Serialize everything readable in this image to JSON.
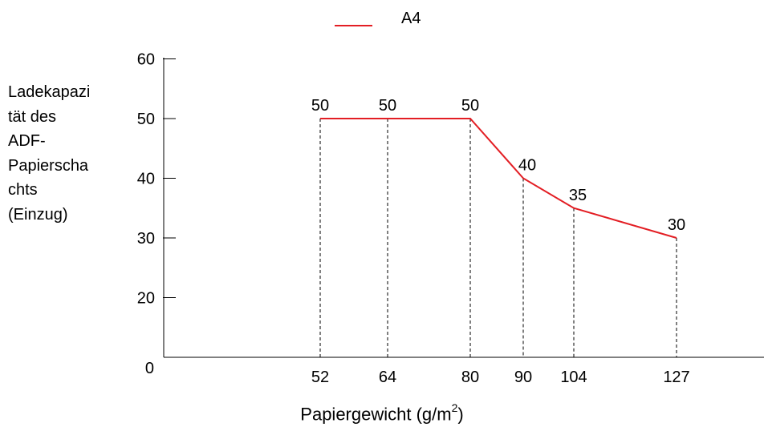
{
  "chart_data": {
    "type": "line",
    "series": [
      {
        "name": "A4",
        "color": "#e31e24",
        "x": [
          52,
          64,
          80,
          90,
          104,
          127
        ],
        "y": [
          50,
          50,
          50,
          40,
          35,
          30
        ],
        "labels": [
          "50",
          "50",
          "50",
          "40",
          "35",
          "30"
        ]
      }
    ],
    "xticks": [
      "52",
      "64",
      "80",
      "90",
      "104",
      "127"
    ],
    "yticks": [
      0,
      20,
      30,
      40,
      50,
      60
    ],
    "ytick_labels": [
      "0",
      "20",
      "30",
      "40",
      "50",
      "60"
    ],
    "ylabel": "Ladekapazi\ntät des\nADF-\nPapierscha\nchts\n(Einzug)",
    "xlabel_main": "Papiergewicht (g/m",
    "xlabel_sup": "2",
    "xlabel_close": ")",
    "ylim": [
      0,
      60
    ],
    "grid": false,
    "legend_position": "top-center",
    "drop_lines": "dashed"
  }
}
